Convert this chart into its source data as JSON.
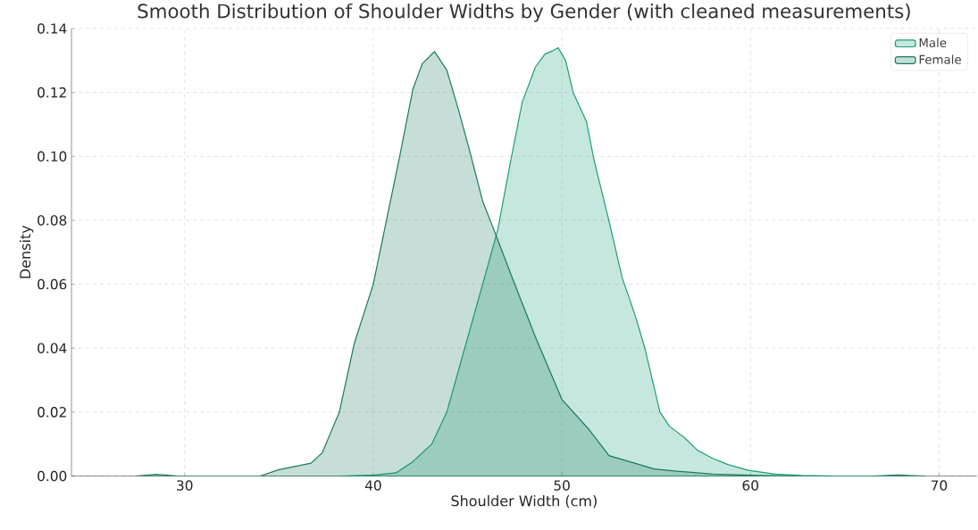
{
  "chart_data": {
    "type": "area",
    "title": "Smooth Distribution of Shoulder Widths by Gender (with cleaned measurements)",
    "xlabel": "Shoulder Width (cm)",
    "ylabel": "Density",
    "xlim": [
      24,
      72
    ],
    "ylim": [
      0,
      0.14
    ],
    "xticks": [
      30,
      40,
      50,
      60,
      70
    ],
    "yticks": [
      {
        "value": 0,
        "label": "0.00"
      },
      0.02,
      0.04,
      0.06,
      0.08,
      {
        "value": 0.1,
        "label": "0.10"
      },
      0.12,
      0.14
    ],
    "grid": true,
    "legend": "top right",
    "series": [
      {
        "name": "Male",
        "color": "#1b9e77",
        "x": [
          38.2,
          40.1,
          41.2,
          42.1,
          43.1,
          43.9,
          44.8,
          45.8,
          46.6,
          47.3,
          47.9,
          48.6,
          49.1,
          49.5,
          49.8,
          50.2,
          50.6,
          51.3,
          51.7,
          52.45,
          53.2,
          53.9,
          54.4,
          54.8,
          55.2,
          55.7,
          56.5,
          57.2,
          58,
          58.8,
          59.9,
          61.3,
          62.7,
          64.6,
          67.5
        ],
        "values": [
          0,
          0.0003,
          0.001,
          0.0045,
          0.01,
          0.02,
          0.039,
          0.06,
          0.077,
          0.099,
          0.117,
          0.128,
          0.132,
          0.133,
          0.134,
          0.13,
          0.12,
          0.111,
          0.099,
          0.081,
          0.062,
          0.05,
          0.04,
          0.03,
          0.02,
          0.0156,
          0.012,
          0.008,
          0.0055,
          0.0036,
          0.0018,
          0.0006,
          0.0002,
          0,
          0
        ]
      },
      {
        "name": "Female",
        "color": "#1b7a5e",
        "x": [
          27.4,
          28.5,
          29.7,
          34,
          35,
          36.7,
          37.3,
          38.2,
          39,
          40,
          40.7,
          41.4,
          42.1,
          42.6,
          43.25,
          43.9,
          44.5,
          45.1,
          45.8,
          46.4,
          47.5,
          48.6,
          50,
          51.4,
          52.5,
          54.9,
          56.1,
          58,
          60.4,
          62.7,
          66.5,
          67.8,
          69.3
        ],
        "values": [
          0,
          0.0005,
          0,
          0,
          0.002,
          0.004,
          0.0073,
          0.02,
          0.0416,
          0.06,
          0.08,
          0.1,
          0.121,
          0.129,
          0.1328,
          0.127,
          0.115,
          0.102,
          0.086,
          0.077,
          0.06,
          0.0435,
          0.024,
          0.0148,
          0.0064,
          0.0022,
          0.0015,
          0.0006,
          0.0002,
          0,
          0,
          0.0003,
          0
        ]
      }
    ]
  }
}
